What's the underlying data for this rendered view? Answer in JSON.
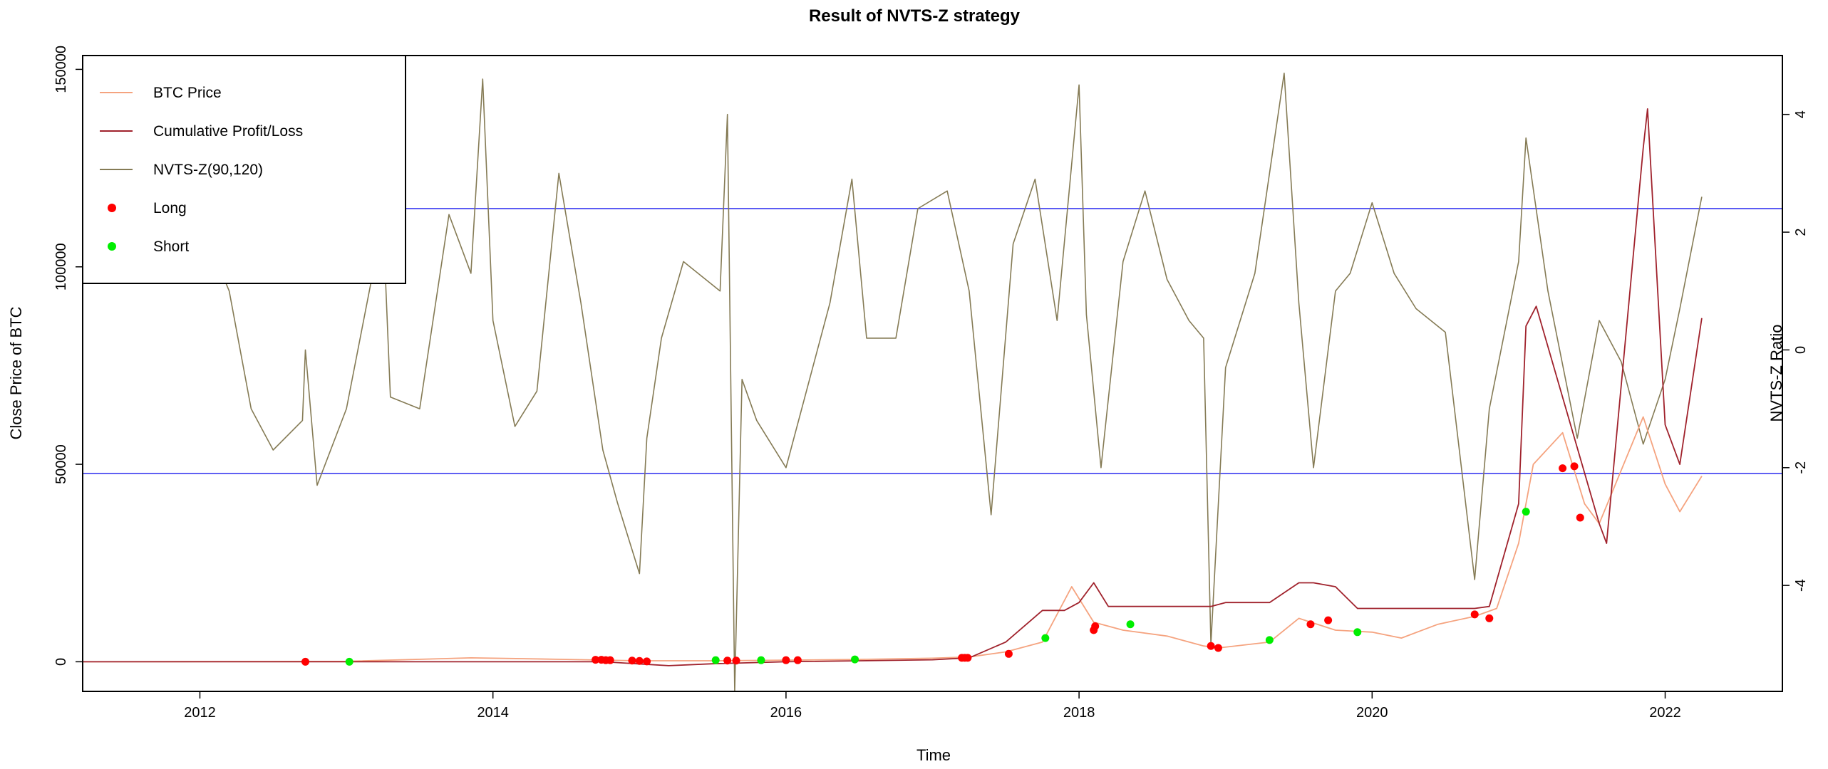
{
  "chart_data": {
    "type": "line",
    "title": "Result of NVTS-Z strategy",
    "xlabel": "Time",
    "ylabel_left": "Close Price of BTC",
    "ylabel_right": "NVTS-Z Ratio",
    "xlim": [
      2011.2,
      2022.8
    ],
    "ylim_left": [
      -7500,
      153500
    ],
    "ylim_right": [
      -5.8,
      5.0
    ],
    "x_ticks": [
      2012,
      2014,
      2016,
      2018,
      2020,
      2022
    ],
    "x_tick_labels": [
      "2012",
      "2014",
      "2016",
      "2018",
      "2020",
      "2022"
    ],
    "y_left_ticks": [
      0,
      50000,
      100000,
      150000
    ],
    "y_left_tick_labels": [
      "0",
      "50000",
      "100000",
      "150000"
    ],
    "y_right_ticks": [
      -4,
      -2,
      0,
      2,
      4
    ],
    "y_right_tick_labels": [
      "-4",
      "-2",
      "0",
      "2",
      "4"
    ],
    "legend_position": "top-left",
    "legend": [
      {
        "label": "BTC Price",
        "kind": "line",
        "color": "#F5A37F"
      },
      {
        "label": "Cumulative Profit/Loss",
        "kind": "line",
        "color": "#A0222C"
      },
      {
        "label": "NVTS-Z(90,120)",
        "kind": "line",
        "color": "#857B55"
      },
      {
        "label": "Long",
        "kind": "point",
        "color": "#FF0000"
      },
      {
        "label": "Short",
        "kind": "point",
        "color": "#00EE00"
      }
    ],
    "thresholds": [
      {
        "axis": "right",
        "value": 2.4,
        "color": "#3B3BF0"
      },
      {
        "axis": "right",
        "value": -2.1,
        "color": "#3B3BF0"
      }
    ],
    "series": [
      {
        "name": "NVTS-Z(90,120)",
        "axis": "right",
        "color": "#857B55",
        "x": [
          2011.2,
          2011.6,
          2012.0,
          2012.2,
          2012.35,
          2012.5,
          2012.7,
          2012.72,
          2012.8,
          2013.0,
          2013.25,
          2013.3,
          2013.5,
          2013.7,
          2013.85,
          2013.93,
          2014.0,
          2014.15,
          2014.3,
          2014.45,
          2014.6,
          2014.75,
          2014.85,
          2015.0,
          2015.05,
          2015.15,
          2015.3,
          2015.55,
          2015.6,
          2015.65,
          2015.7,
          2015.8,
          2016.0,
          2016.3,
          2016.45,
          2016.55,
          2016.75,
          2016.9,
          2017.1,
          2017.25,
          2017.4,
          2017.55,
          2017.7,
          2017.85,
          2018.0,
          2018.05,
          2018.15,
          2018.3,
          2018.45,
          2018.6,
          2018.75,
          2018.85,
          2018.9,
          2019.0,
          2019.2,
          2019.4,
          2019.5,
          2019.6,
          2019.75,
          2019.85,
          2020.0,
          2020.15,
          2020.3,
          2020.5,
          2020.7,
          2020.8,
          2021.0,
          2021.05,
          2021.2,
          2021.4,
          2021.55,
          2021.7,
          2021.85,
          2022.0,
          2022.1,
          2022.25
        ],
        "y": [
          3.6,
          3.2,
          2.2,
          1.0,
          -1.0,
          -1.7,
          -1.2,
          0.0,
          -2.3,
          -1.0,
          2.2,
          -0.8,
          -1.0,
          2.3,
          1.3,
          4.6,
          0.5,
          -1.3,
          -0.7,
          3.0,
          0.8,
          -1.7,
          -2.6,
          -3.8,
          -1.5,
          0.2,
          1.5,
          1.0,
          4.0,
          -5.8,
          -0.5,
          -1.2,
          -2.0,
          0.8,
          2.9,
          0.2,
          0.2,
          2.4,
          2.7,
          1.0,
          -2.8,
          1.8,
          2.9,
          0.5,
          4.5,
          0.6,
          -2.0,
          1.5,
          2.7,
          1.2,
          0.5,
          0.2,
          -5.0,
          -0.3,
          1.3,
          4.7,
          0.8,
          -2.0,
          1.0,
          1.3,
          2.5,
          1.3,
          0.7,
          0.3,
          -3.9,
          -1.0,
          1.5,
          3.6,
          1.0,
          -1.5,
          0.5,
          -0.2,
          -1.6,
          -0.5,
          0.7,
          2.6
        ]
      },
      {
        "name": "BTC Price",
        "axis": "left",
        "color": "#F5A37F",
        "x": [
          2011.2,
          2013.0,
          2013.85,
          2014.5,
          2015.0,
          2015.5,
          2016.0,
          2016.5,
          2017.0,
          2017.25,
          2017.5,
          2017.75,
          2017.95,
          2018.1,
          2018.3,
          2018.6,
          2018.85,
          2018.95,
          2019.3,
          2019.5,
          2019.75,
          2020.0,
          2020.2,
          2020.45,
          2020.7,
          2020.85,
          2021.0,
          2021.1,
          2021.3,
          2021.45,
          2021.55,
          2021.85,
          2022.0,
          2022.1,
          2022.25
        ],
        "y": [
          0,
          100,
          1000,
          600,
          250,
          250,
          400,
          600,
          900,
          1200,
          2500,
          5000,
          19000,
          10000,
          8000,
          6500,
          4000,
          3500,
          5000,
          11000,
          8000,
          7500,
          6000,
          9500,
          11500,
          13500,
          30000,
          50000,
          58000,
          40000,
          35000,
          62000,
          45000,
          38000,
          47000
        ]
      },
      {
        "name": "Cumulative Profit/Loss",
        "axis": "left",
        "color": "#A0222C",
        "x": [
          2011.2,
          2012.72,
          2014.75,
          2015.2,
          2015.5,
          2016.0,
          2017.0,
          2017.25,
          2017.5,
          2017.75,
          2017.9,
          2018.0,
          2018.1,
          2018.2,
          2018.3,
          2018.6,
          2018.9,
          2019.0,
          2019.3,
          2019.5,
          2019.6,
          2019.75,
          2019.9,
          2020.0,
          2020.7,
          2020.8,
          2021.0,
          2021.05,
          2021.12,
          2021.55,
          2021.6,
          2021.85,
          2021.88,
          2022.0,
          2022.1,
          2022.25
        ],
        "y": [
          0,
          0,
          0,
          -1000,
          -500,
          0,
          500,
          1000,
          5000,
          13000,
          13000,
          15000,
          20000,
          14000,
          14000,
          14000,
          14000,
          15000,
          15000,
          20000,
          20000,
          19000,
          13500,
          13500,
          13500,
          14000,
          40000,
          85000,
          90000,
          35000,
          30000,
          130000,
          140000,
          60000,
          50000,
          87000
        ]
      }
    ],
    "points": {
      "long": {
        "label": "Long",
        "color": "#FF0000",
        "x": [
          2012.72,
          2014.7,
          2014.74,
          2014.77,
          2014.8,
          2014.95,
          2015.0,
          2015.05,
          2015.6,
          2015.66,
          2016.0,
          2016.08,
          2017.2,
          2017.22,
          2017.24,
          2017.52,
          2018.1,
          2018.11,
          2018.9,
          2018.95,
          2019.58,
          2019.7,
          2020.7,
          2020.8,
          2021.3,
          2021.38,
          2021.42
        ],
        "y": [
          0,
          500,
          500,
          400,
          400,
          300,
          200,
          100,
          300,
          300,
          400,
          400,
          1000,
          1000,
          1000,
          2000,
          8000,
          9000,
          4000,
          3500,
          9500,
          10500,
          12000,
          11000,
          49000,
          49500,
          36500
        ]
      },
      "short": {
        "label": "Short",
        "color": "#00EE00",
        "x": [
          2013.02,
          2015.52,
          2015.83,
          2016.47,
          2017.77,
          2018.35,
          2019.3,
          2019.9,
          2021.05
        ],
        "y": [
          0,
          400,
          400,
          600,
          6000,
          9500,
          5500,
          7500,
          38000
        ]
      }
    }
  }
}
